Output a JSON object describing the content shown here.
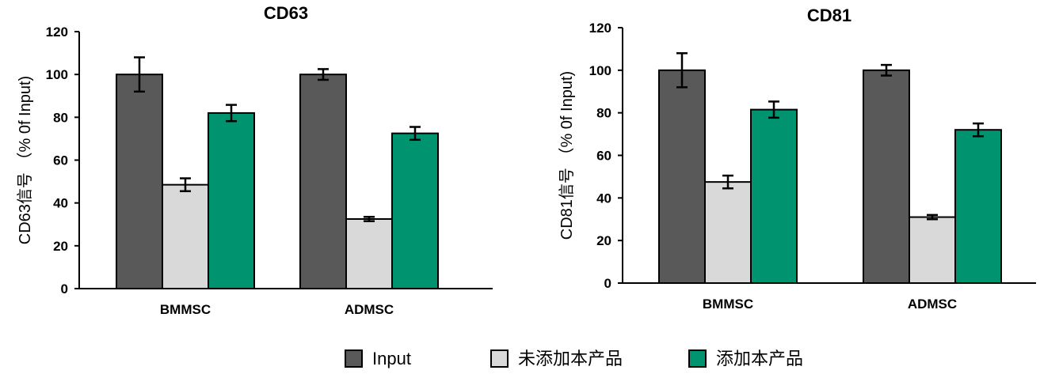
{
  "chart_data": [
    {
      "type": "bar",
      "title": "CD63",
      "xlabel": "",
      "ylabel": "CD63信号 （% 0f Input)",
      "ylim": [
        0,
        120
      ],
      "yticks": [
        0,
        20,
        40,
        60,
        80,
        100,
        120
      ],
      "categories": [
        "BMMSC",
        "ADMSC"
      ],
      "series": [
        {
          "name": "Input",
          "color": "#595959",
          "values": [
            100,
            100
          ],
          "errors": [
            8,
            2.5
          ]
        },
        {
          "name": "未添加本产品",
          "color": "#d9d9d9",
          "values": [
            48.5,
            32.5
          ],
          "errors": [
            3,
            1
          ]
        },
        {
          "name": "添加本产品",
          "color": "#009370",
          "values": [
            82,
            72.5
          ],
          "errors": [
            3.8,
            3
          ]
        }
      ]
    },
    {
      "type": "bar",
      "title": "CD81",
      "xlabel": "",
      "ylabel": "CD81信号 （% 0f Input)",
      "ylim": [
        0,
        120
      ],
      "yticks": [
        0,
        20,
        40,
        60,
        80,
        100,
        120
      ],
      "categories": [
        "BMMSC",
        "ADMSC"
      ],
      "series": [
        {
          "name": "Input",
          "color": "#595959",
          "values": [
            100,
            100
          ],
          "errors": [
            8,
            2.5
          ]
        },
        {
          "name": "未添加本产品",
          "color": "#d9d9d9",
          "values": [
            47.5,
            31
          ],
          "errors": [
            3,
            1
          ]
        },
        {
          "name": "添加本产品",
          "color": "#009370",
          "values": [
            81.5,
            72
          ],
          "errors": [
            3.8,
            3
          ]
        }
      ]
    }
  ],
  "legend": [
    {
      "label": "Input",
      "color": "#595959"
    },
    {
      "label": "未添加本产品",
      "color": "#d9d9d9"
    },
    {
      "label": "添加本产品",
      "color": "#009370"
    }
  ]
}
